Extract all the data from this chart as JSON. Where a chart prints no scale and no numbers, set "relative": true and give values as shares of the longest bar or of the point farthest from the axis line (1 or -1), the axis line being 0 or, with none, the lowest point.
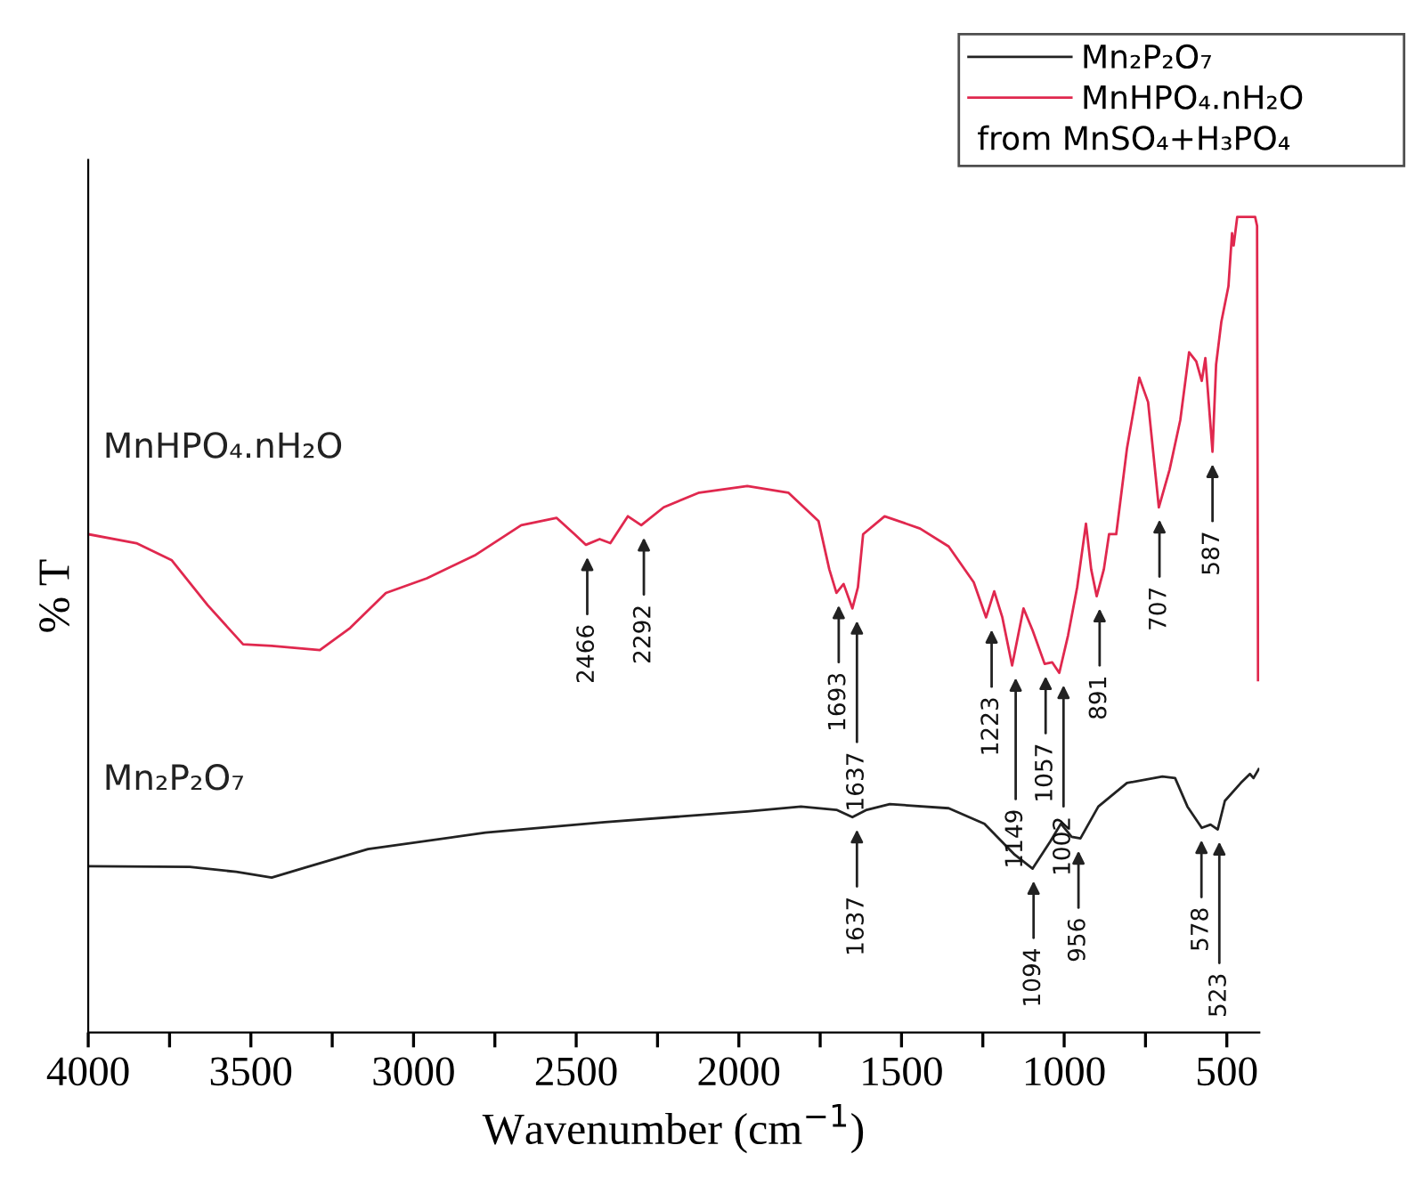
{
  "chart_data": {
    "type": "line",
    "relative": true,
    "xlabel": "Wavenumber (cm$^{−1}$)",
    "ylabel": "% T",
    "xlim": [
      4000,
      400
    ],
    "xticks": [
      4000,
      {
        "value": 3750,
        "label": null
      },
      3500,
      {
        "value": 3250,
        "label": null
      },
      3000,
      {
        "value": 2750,
        "label": null
      },
      2500,
      {
        "value": 2250,
        "label": null
      },
      2000,
      {
        "value": 1750,
        "label": null
      },
      1500,
      {
        "value": 1250,
        "label": null
      },
      1000,
      {
        "value": 750,
        "label": null
      },
      500
    ],
    "legend": "top right",
    "grid": false,
    "series": [
      {
        "name": "Mn₂P₂O₇",
        "color": "#222222",
        "x": [
          4000,
          3688,
          3545,
          3436,
          3326,
          3140,
          2779,
          2412,
          1974,
          1809,
          1700,
          1651,
          1607,
          1536,
          1355,
          1245,
          1152,
          1097,
          1043,
          1010,
          977,
          950,
          895,
          807,
          698,
          659,
          621,
          577,
          550,
          528,
          506,
          457,
          429,
          418,
          402
        ],
        "values": [
          0.204,
          0.203,
          0.197,
          0.19,
          0.203,
          0.225,
          0.245,
          0.258,
          0.271,
          0.277,
          0.273,
          0.264,
          0.273,
          0.28,
          0.275,
          0.256,
          0.218,
          0.201,
          0.234,
          0.256,
          0.24,
          0.238,
          0.277,
          0.306,
          0.314,
          0.312,
          0.277,
          0.251,
          0.255,
          0.249,
          0.284,
          0.306,
          0.317,
          0.312,
          0.323
        ]
      },
      {
        "name": "MnHPO₄.nH₂O",
        "color": "#e0284e",
        "x": [
          4000,
          3852,
          3743,
          3633,
          3524,
          3436,
          3288,
          3195,
          3085,
          2959,
          2812,
          2669,
          2560,
          2505,
          2470,
          2428,
          2395,
          2341,
          2300,
          2231,
          2122,
          1974,
          1848,
          1755,
          1722,
          1700,
          1678,
          1651,
          1634,
          1618,
          1552,
          1443,
          1355,
          1278,
          1240,
          1215,
          1190,
          1160,
          1125,
          1097,
          1060,
          1037,
          1015,
          988,
          960,
          933,
          917,
          900,
          878,
          862,
          840,
          807,
          769,
          742,
          709,
          676,
          643,
          616,
          594,
          577,
          566,
          544,
          533,
          517,
          495,
          484,
          479,
          468,
          413,
          407,
          404
        ],
        "values": [
          0.611,
          0.6,
          0.579,
          0.524,
          0.476,
          0.474,
          0.469,
          0.496,
          0.539,
          0.557,
          0.585,
          0.622,
          0.631,
          0.611,
          0.598,
          0.605,
          0.6,
          0.633,
          0.622,
          0.644,
          0.662,
          0.67,
          0.662,
          0.627,
          0.568,
          0.539,
          0.55,
          0.52,
          0.546,
          0.611,
          0.633,
          0.618,
          0.596,
          0.552,
          0.509,
          0.541,
          0.509,
          0.45,
          0.52,
          0.493,
          0.452,
          0.454,
          0.441,
          0.487,
          0.546,
          0.624,
          0.568,
          0.535,
          0.568,
          0.611,
          0.611,
          0.716,
          0.803,
          0.773,
          0.644,
          0.69,
          0.751,
          0.834,
          0.823,
          0.799,
          0.827,
          0.712,
          0.819,
          0.871,
          0.915,
          0.98,
          0.965,
          1.0,
          1.0,
          0.989,
          0.432
        ]
      }
    ],
    "annotations": [
      {
        "text": "2466",
        "x": 2466,
        "y": 0.598
      },
      {
        "text": "2292",
        "x": 2292,
        "y": 0.622
      },
      {
        "text": "1693",
        "x": 1693,
        "y": 0.539
      },
      {
        "text": "1637",
        "x": 1637,
        "y": 0.52
      },
      {
        "text": "1223",
        "x": 1223,
        "y": 0.509
      },
      {
        "text": "1149",
        "x": 1149,
        "y": 0.45
      },
      {
        "text": "1057",
        "x": 1057,
        "y": 0.452
      },
      {
        "text": "1002",
        "x": 1002,
        "y": 0.441
      },
      {
        "text": "891",
        "x": 891,
        "y": 0.535
      },
      {
        "text": "707",
        "x": 707,
        "y": 0.644
      },
      {
        "text": "587",
        "x": 544,
        "y": 0.712
      },
      {
        "text": "1637",
        "x": 1637,
        "y": 0.264
      },
      {
        "text": "1094",
        "x": 1094,
        "y": 0.201
      },
      {
        "text": "956",
        "x": 956,
        "y": 0.238
      },
      {
        "text": "578",
        "x": 578,
        "y": 0.251
      },
      {
        "text": "523",
        "x": 523,
        "y": 0.249
      },
      "from MnSO₄+H₃PO₄"
    ]
  }
}
